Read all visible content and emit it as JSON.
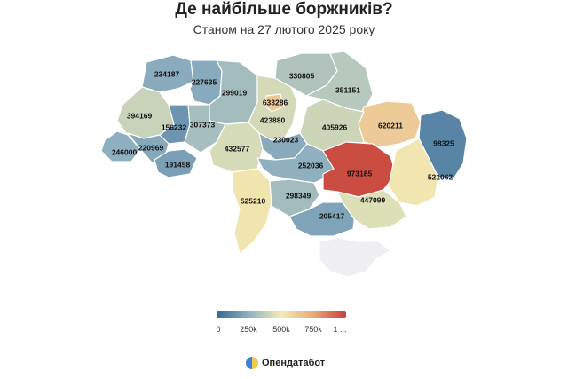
{
  "header": {
    "title": "Де найбільше боржників?",
    "subtitle": "Станом на 27 лютого 2025 року"
  },
  "chart_data": {
    "type": "choropleth",
    "title": "Де найбільше боржників?",
    "subtitle": "Станом на 27 лютого 2025 року",
    "regions": [
      {
        "id": "volyn",
        "value": 234187
      },
      {
        "id": "rivne",
        "value": 227635
      },
      {
        "id": "zhytomyr",
        "value": 299019
      },
      {
        "id": "kyiv-oblast",
        "value": 423880
      },
      {
        "id": "kyiv-city",
        "value": 633286
      },
      {
        "id": "chernihiv",
        "value": 330805
      },
      {
        "id": "sumy",
        "value": 351151
      },
      {
        "id": "kharkiv",
        "value": 620211
      },
      {
        "id": "luhansk",
        "value": 98325
      },
      {
        "id": "lviv",
        "value": 394169
      },
      {
        "id": "ternopil",
        "value": 156232
      },
      {
        "id": "khmelnytskyi",
        "value": 307373
      },
      {
        "id": "vinnytsia",
        "value": 432577
      },
      {
        "id": "cherkasy",
        "value": 230023
      },
      {
        "id": "poltava",
        "value": 405926
      },
      {
        "id": "zakarpattia",
        "value": 246000
      },
      {
        "id": "ivano-frankivsk",
        "value": 220969
      },
      {
        "id": "chernivtsi",
        "value": 191458
      },
      {
        "id": "kirovohrad",
        "value": 252036
      },
      {
        "id": "dnipropetrovsk",
        "value": 973185
      },
      {
        "id": "donetsk",
        "value": 521062
      },
      {
        "id": "odesa",
        "value": 525210
      },
      {
        "id": "mykolaiv",
        "value": 298349
      },
      {
        "id": "kherson",
        "value": 205417
      },
      {
        "id": "zaporizhzhia",
        "value": 447099
      },
      {
        "id": "crimea",
        "value": null
      }
    ],
    "scale": {
      "min": 0,
      "max": 1000000,
      "ticks": [
        "0",
        "250k",
        "500k",
        "750k",
        "1 ..."
      ],
      "colors": [
        "#356894",
        "#8fb0c0",
        "#f2ecb5",
        "#e8a77a",
        "#c8413a"
      ],
      "no_data_color": "#efeff2"
    }
  },
  "brand": {
    "name": "Опендатабот",
    "logo_colors": [
      "#3b82d6",
      "#f2c94c"
    ]
  }
}
